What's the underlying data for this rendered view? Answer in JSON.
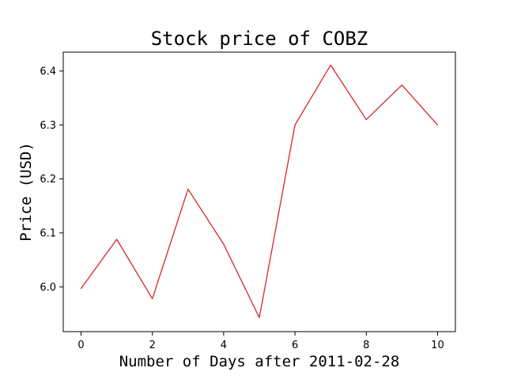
{
  "chart_data": {
    "type": "line",
    "title": "Stock price of COBZ",
    "xlabel": "Number of Days after 2011-02-28",
    "ylabel": "Price (USD)",
    "xlim": [
      -0.5,
      10.5
    ],
    "ylim": [
      5.917,
      6.435
    ],
    "x_ticks": [
      0,
      2,
      4,
      6,
      8,
      10
    ],
    "y_ticks": [
      6.0,
      6.1,
      6.2,
      6.3,
      6.4
    ],
    "grid": false,
    "series": [
      {
        "color": "#d62728",
        "x": [
          0,
          1,
          2,
          3,
          4,
          5,
          6,
          7,
          8,
          9,
          10
        ],
        "y": [
          5.997,
          6.088,
          5.978,
          6.181,
          6.079,
          5.943,
          6.3,
          6.411,
          6.31,
          6.374,
          6.3
        ]
      }
    ]
  }
}
